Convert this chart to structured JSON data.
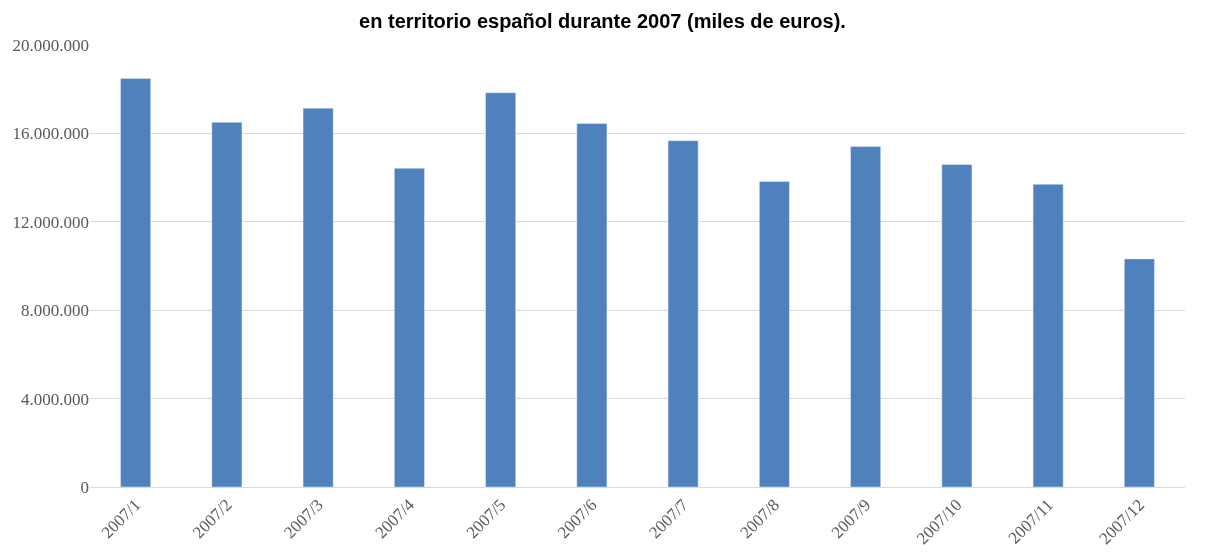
{
  "chart_data": {
    "type": "bar",
    "title": "en territorio español durante 2007 (miles de euros).",
    "categories": [
      "2007/1",
      "2007/2",
      "2007/3",
      "2007/4",
      "2007/5",
      "2007/6",
      "2007/7",
      "2007/8",
      "2007/9",
      "2007/10",
      "2007/11",
      "2007/12"
    ],
    "values": [
      18480000,
      16500000,
      17140000,
      14420000,
      17840000,
      16450000,
      15670000,
      13820000,
      15410000,
      14590000,
      13700000,
      10320000
    ],
    "color": "#4f81bd",
    "ylim": [
      0,
      20000000
    ],
    "yticks": [
      {
        "value": 0,
        "label": "0"
      },
      {
        "value": 4000000,
        "label": "4.000.000"
      },
      {
        "value": 8000000,
        "label": "8.000.000"
      },
      {
        "value": 12000000,
        "label": "12.000.000"
      },
      {
        "value": 16000000,
        "label": "16.000.000"
      },
      {
        "value": 20000000,
        "label": "20.000.000"
      }
    ],
    "grid": "y"
  }
}
